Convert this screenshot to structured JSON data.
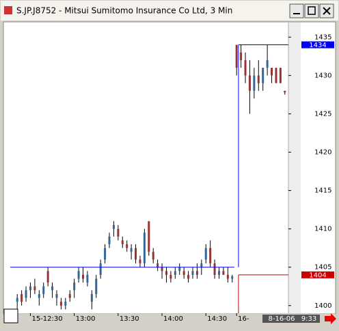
{
  "window": {
    "title": "S.JP.J8752 - Mitsui Sumitomo Insurance Co Ltd, 3 Min"
  },
  "chart_data": {
    "type": "candlestick",
    "categories": [
      null,
      null,
      null,
      "15-12:30",
      null,
      null,
      null,
      null,
      null,
      null,
      null,
      null,
      null,
      "13:00",
      null,
      null,
      null,
      null,
      null,
      null,
      null,
      null,
      null,
      "13:30",
      null,
      null,
      null,
      null,
      null,
      null,
      null,
      null,
      null,
      "14:00",
      null,
      null,
      null,
      null,
      null,
      null,
      null,
      null,
      null,
      "14:30",
      null,
      null,
      null,
      null,
      null,
      null,
      "16-",
      null,
      null,
      null,
      null,
      null,
      null,
      null,
      null,
      null,
      null,
      null
    ],
    "ohlc": [
      [
        1400.5,
        1401.5,
        1399.5,
        1401
      ],
      [
        1401.5,
        1402,
        1400,
        1400.5
      ],
      [
        1401,
        1402.5,
        1400.5,
        1402
      ],
      [
        1402,
        1403,
        1401,
        1402.5
      ],
      [
        1402.5,
        1403.5,
        1401.5,
        1402
      ],
      [
        1401,
        1402,
        1400,
        1401.5
      ],
      [
        1401.5,
        1403,
        1401,
        1402.5
      ],
      [
        1404.5,
        1405,
        1402.5,
        1403
      ],
      [
        1402,
        1403,
        1401,
        1402.5
      ],
      [
        1401,
        1402,
        1400,
        1401.5
      ],
      [
        1400.5,
        1401,
        1399.5,
        1400
      ],
      [
        1400,
        1401,
        1399.5,
        1400.5
      ],
      [
        1401.5,
        1402,
        1400.5,
        1401
      ],
      [
        1402,
        1403.5,
        1401,
        1403
      ],
      [
        1403.5,
        1405,
        1403,
        1404.5
      ],
      [
        1404,
        1405,
        1403,
        1403.5
      ],
      [
        1403,
        1404.5,
        1402.5,
        1404
      ],
      [
        1400.5,
        1402,
        1399.5,
        1401.5
      ],
      [
        1401.5,
        1404,
        1401,
        1403.5
      ],
      [
        1404,
        1406,
        1403.5,
        1405.5
      ],
      [
        1406,
        1408,
        1405.5,
        1407.5
      ],
      [
        1408,
        1409.5,
        1407.5,
        1409
      ],
      [
        1410,
        1411,
        1409,
        1410.5
      ],
      [
        1410,
        1410.5,
        1408.5,
        1409
      ],
      [
        1408.5,
        1409,
        1407.5,
        1408
      ],
      [
        1408,
        1408.5,
        1407,
        1407.5
      ],
      [
        1407,
        1408,
        1406,
        1407.5
      ],
      [
        1407.5,
        1408,
        1405.5,
        1406
      ],
      [
        1406,
        1406.5,
        1405,
        1405.5
      ],
      [
        1405.5,
        1410,
        1405,
        1409.5
      ],
      [
        1411,
        1411,
        1406.5,
        1407
      ],
      [
        1407,
        1407.5,
        1405.5,
        1406
      ],
      [
        1405.5,
        1406,
        1404.5,
        1405
      ],
      [
        1405,
        1405.5,
        1403.5,
        1404.5
      ],
      [
        1404.5,
        1405,
        1403,
        1404
      ],
      [
        1404,
        1404.5,
        1403,
        1403.5
      ],
      [
        1404,
        1405,
        1403.5,
        1404.5
      ],
      [
        1404.5,
        1405.5,
        1404,
        1405
      ],
      [
        1404.5,
        1405,
        1403.5,
        1404
      ],
      [
        1404,
        1404.5,
        1403,
        1403.5
      ],
      [
        1404,
        1405,
        1403.5,
        1404.5
      ],
      [
        1404.5,
        1405.5,
        1403.5,
        1404
      ],
      [
        1405,
        1406,
        1404,
        1405.5
      ],
      [
        1406,
        1408,
        1405.5,
        1407.5
      ],
      [
        1407.5,
        1408.5,
        1405,
        1405.5
      ],
      [
        1405.5,
        1406,
        1403.5,
        1404
      ],
      [
        1404,
        1405,
        1403.5,
        1404.5
      ],
      [
        1404.5,
        1405,
        1404,
        1404
      ],
      [
        1404,
        1405,
        1403,
        1403.5
      ],
      [
        1403.5,
        1404,
        1403,
        1403.8
      ],
      [
        1434,
        1434,
        1430,
        1431
      ],
      [
        1433,
        1434,
        1431,
        1432
      ],
      [
        1432,
        1433,
        1429,
        1430
      ],
      [
        1430,
        1432,
        1425,
        1428
      ],
      [
        1428,
        1431,
        1427,
        1430
      ],
      [
        1430,
        1432,
        1428,
        1429
      ],
      [
        1429,
        1431,
        1428,
        1431
      ],
      [
        1431,
        1434,
        1430,
        1432
      ],
      [
        1431,
        1431,
        1429,
        1430
      ],
      [
        1431,
        1431,
        1429,
        1429
      ],
      [
        1431,
        1431,
        1429,
        1429
      ],
      [
        1428,
        1428,
        1427.5,
        1427.8
      ]
    ],
    "up_color": "#336699",
    "down_color": "#993333",
    "ref_lines": [
      {
        "color": "#0000ff",
        "levels": [
          1405,
          1434
        ]
      },
      {
        "color": "#cc0000",
        "levels": [
          null,
          1404
        ]
      }
    ],
    "ylim": [
      1399,
      1436.9
    ],
    "yticks": [
      1400,
      1405,
      1410,
      1415,
      1420,
      1425,
      1430,
      1435
    ],
    "grid": false,
    "cursor_label": [
      "8-16-06",
      "9:33"
    ]
  }
}
